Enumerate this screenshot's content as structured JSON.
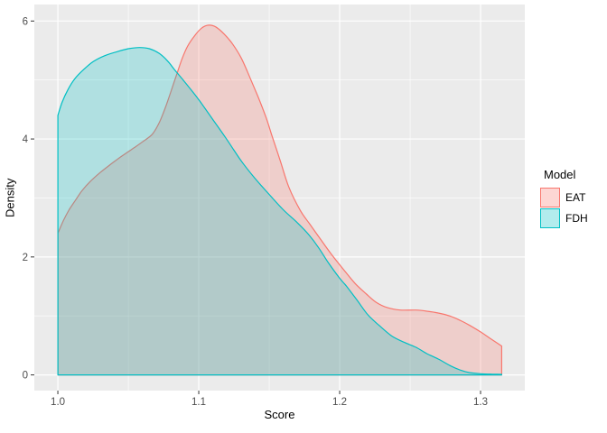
{
  "axes": {
    "x": {
      "title": "Score",
      "tick_labels": [
        "1.0",
        "1.1",
        "1.2",
        "1.3"
      ],
      "tick_values": [
        1.0,
        1.1,
        1.2,
        1.3
      ],
      "minor_ticks": [
        1.05,
        1.15,
        1.25
      ],
      "range": [
        0.9833,
        1.3314
      ]
    },
    "y": {
      "title": "Density",
      "tick_labels": [
        "0",
        "2",
        "4",
        "6"
      ],
      "tick_values": [
        0,
        2,
        4,
        6
      ],
      "minor_ticks": [
        1,
        3,
        5
      ],
      "range": [
        -0.266,
        6.28
      ]
    }
  },
  "legend": {
    "title": "Model",
    "position": "right",
    "items": [
      {
        "label": "EAT",
        "color": "#F8766D"
      },
      {
        "label": "FDH",
        "color": "#00BFC4"
      }
    ]
  },
  "style": {
    "panel_background": "#EBEBEB",
    "grid_color": "#FFFFFF",
    "tick_mark_color": "#333333",
    "tick_label_color": "#4D4D4D",
    "fill_alpha": 0.25
  },
  "chart_data": {
    "type": "area",
    "subtype": "density",
    "xlabel": "Score",
    "ylabel": "Density",
    "legend_title": "Model",
    "legend_position": "right",
    "xlim": [
      0.9833,
      1.3314
    ],
    "ylim": [
      -0.27,
      6.28
    ],
    "grid": true,
    "series": [
      {
        "name": "EAT",
        "color": "#F8766D",
        "points": [
          [
            1.0,
            2.4
          ],
          [
            1.004,
            2.62
          ],
          [
            1.008,
            2.8
          ],
          [
            1.013,
            2.98
          ],
          [
            1.017,
            3.12
          ],
          [
            1.023,
            3.28
          ],
          [
            1.03,
            3.43
          ],
          [
            1.038,
            3.58
          ],
          [
            1.046,
            3.72
          ],
          [
            1.054,
            3.85
          ],
          [
            1.06,
            3.95
          ],
          [
            1.067,
            4.08
          ],
          [
            1.072,
            4.28
          ],
          [
            1.077,
            4.58
          ],
          [
            1.083,
            5.0
          ],
          [
            1.088,
            5.35
          ],
          [
            1.092,
            5.57
          ],
          [
            1.097,
            5.75
          ],
          [
            1.102,
            5.88
          ],
          [
            1.107,
            5.93
          ],
          [
            1.112,
            5.9
          ],
          [
            1.118,
            5.78
          ],
          [
            1.124,
            5.61
          ],
          [
            1.13,
            5.38
          ],
          [
            1.136,
            5.06
          ],
          [
            1.142,
            4.72
          ],
          [
            1.148,
            4.35
          ],
          [
            1.152,
            4.05
          ],
          [
            1.158,
            3.62
          ],
          [
            1.164,
            3.18
          ],
          [
            1.172,
            2.79
          ],
          [
            1.179,
            2.55
          ],
          [
            1.187,
            2.28
          ],
          [
            1.194,
            2.05
          ],
          [
            1.203,
            1.78
          ],
          [
            1.211,
            1.55
          ],
          [
            1.219,
            1.37
          ],
          [
            1.226,
            1.23
          ],
          [
            1.234,
            1.14
          ],
          [
            1.243,
            1.1
          ],
          [
            1.254,
            1.1
          ],
          [
            1.262,
            1.08
          ],
          [
            1.27,
            1.05
          ],
          [
            1.278,
            1.0
          ],
          [
            1.286,
            0.92
          ],
          [
            1.293,
            0.83
          ],
          [
            1.3,
            0.73
          ],
          [
            1.308,
            0.6
          ],
          [
            1.315,
            0.49
          ]
        ]
      },
      {
        "name": "FDH",
        "color": "#00BFC4",
        "points": [
          [
            1.0,
            4.4
          ],
          [
            1.003,
            4.62
          ],
          [
            1.007,
            4.83
          ],
          [
            1.012,
            5.02
          ],
          [
            1.018,
            5.17
          ],
          [
            1.025,
            5.31
          ],
          [
            1.033,
            5.41
          ],
          [
            1.042,
            5.48
          ],
          [
            1.05,
            5.53
          ],
          [
            1.058,
            5.55
          ],
          [
            1.065,
            5.53
          ],
          [
            1.072,
            5.45
          ],
          [
            1.078,
            5.32
          ],
          [
            1.083,
            5.17
          ],
          [
            1.09,
            4.97
          ],
          [
            1.097,
            4.76
          ],
          [
            1.102,
            4.6
          ],
          [
            1.11,
            4.33
          ],
          [
            1.118,
            4.06
          ],
          [
            1.125,
            3.81
          ],
          [
            1.131,
            3.6
          ],
          [
            1.14,
            3.33
          ],
          [
            1.15,
            3.06
          ],
          [
            1.16,
            2.8
          ],
          [
            1.17,
            2.58
          ],
          [
            1.178,
            2.38
          ],
          [
            1.185,
            2.16
          ],
          [
            1.192,
            1.9
          ],
          [
            1.2,
            1.64
          ],
          [
            1.205,
            1.5
          ],
          [
            1.212,
            1.28
          ],
          [
            1.22,
            1.02
          ],
          [
            1.228,
            0.84
          ],
          [
            1.237,
            0.66
          ],
          [
            1.246,
            0.55
          ],
          [
            1.254,
            0.47
          ],
          [
            1.262,
            0.36
          ],
          [
            1.27,
            0.27
          ],
          [
            1.279,
            0.15
          ],
          [
            1.286,
            0.08
          ],
          [
            1.292,
            0.04
          ],
          [
            1.3,
            0.02
          ],
          [
            1.308,
            0.012
          ],
          [
            1.315,
            0.01
          ]
        ]
      }
    ]
  }
}
